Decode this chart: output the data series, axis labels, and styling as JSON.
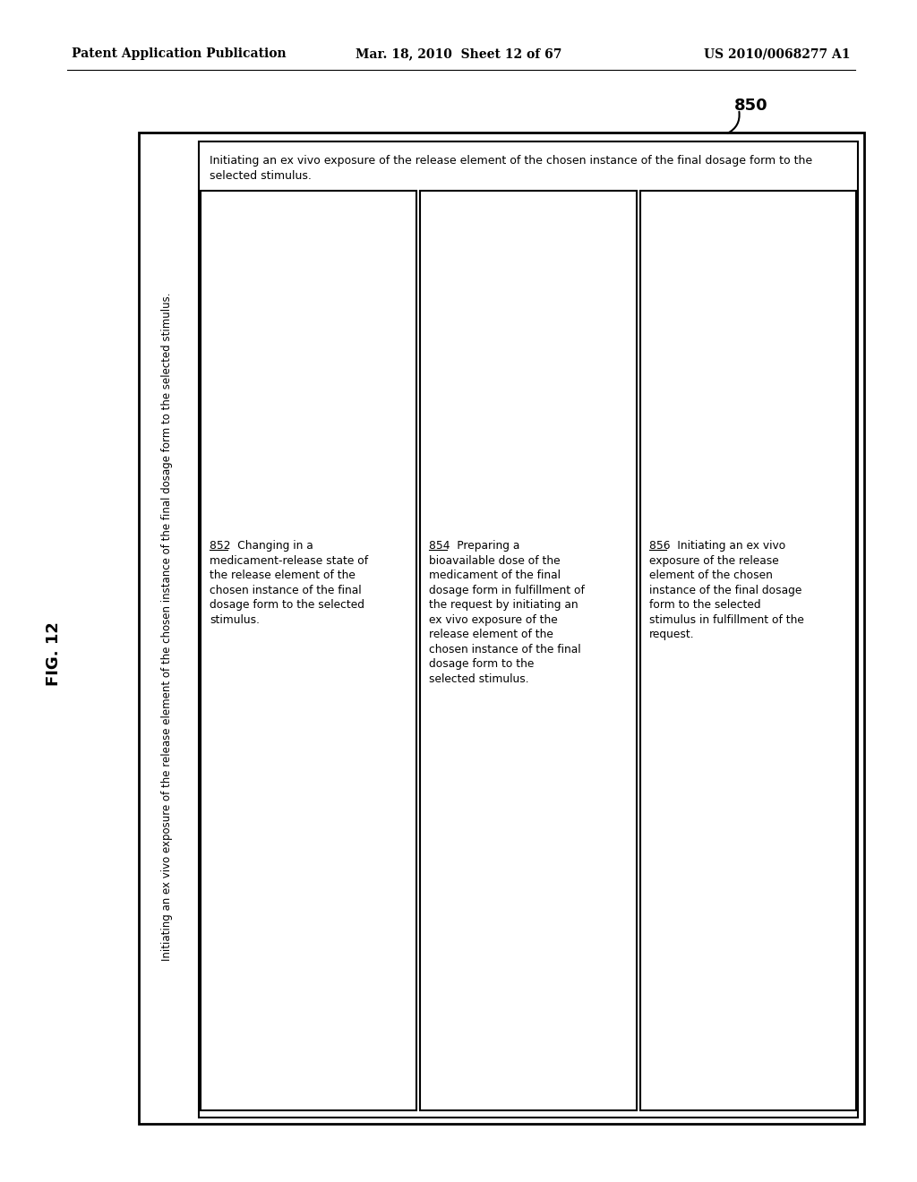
{
  "fig_label": "FIG. 12",
  "header_left": "Patent Application Publication",
  "header_center": "Mar. 18, 2010  Sheet 12 of 67",
  "header_right": "US 2010/0068277 A1",
  "outer_box_label": "850",
  "outer_strip_text": "Initiating an ex vivo exposure of the release element of the chosen instance of the final dosage form to the selected stimulus.",
  "inner_top_text_line1": "Initiating an ex vivo exposure of the release element of the chosen instance of the final dosage form to the",
  "inner_top_text_line2": "selected stimulus.",
  "box1_label": "852",
  "box1_lines": [
    "Changing in a",
    "medicament-release state of",
    "the release element of the",
    "chosen instance of the final",
    "dosage form to the selected",
    "stimulus."
  ],
  "box2_label": "854",
  "box2_lines": [
    "Preparing a",
    "bioavailable dose of the",
    "medicament of the final",
    "dosage form in fulfillment of",
    "the request by initiating an",
    "ex vivo exposure of the",
    "release element of the",
    "chosen instance of the final",
    "dosage form to the",
    "selected stimulus."
  ],
  "box3_label": "856",
  "box3_lines": [
    "Initiating an ex vivo",
    "exposure of the release",
    "element of the chosen",
    "instance of the final dosage",
    "form to the selected",
    "stimulus in fulfillment of the",
    "request."
  ],
  "background_color": "#ffffff",
  "text_color": "#000000"
}
